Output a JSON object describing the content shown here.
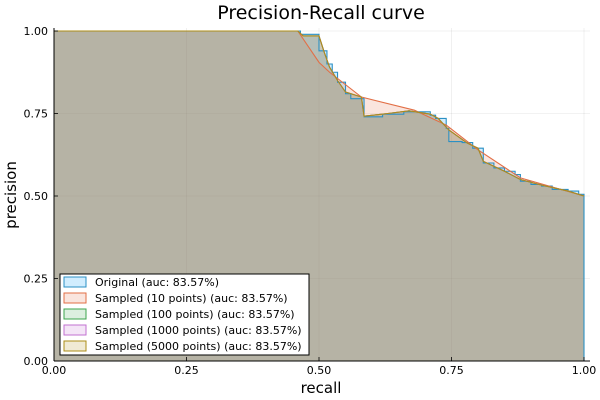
{
  "chart_data": {
    "type": "area",
    "title": "Precision-Recall curve",
    "xlabel": "recall",
    "ylabel": "precision",
    "xlim": [
      0,
      1
    ],
    "ylim": [
      0,
      1
    ],
    "grid": true,
    "legend_position": "bottom-left",
    "x_ticks": [
      {
        "value": 0,
        "label": "0.00"
      },
      {
        "value": 0.25,
        "label": "0.25"
      },
      {
        "value": 0.5,
        "label": "0.50"
      },
      {
        "value": 0.75,
        "label": "0.75"
      },
      {
        "value": 1,
        "label": "1.00"
      }
    ],
    "y_ticks": [
      {
        "value": 0,
        "label": "0.00"
      },
      {
        "value": 0.25,
        "label": "0.25"
      },
      {
        "value": 0.5,
        "label": "0.50"
      },
      {
        "value": 0.75,
        "label": "0.75"
      },
      {
        "value": 1,
        "label": "1.00"
      }
    ],
    "series": [
      {
        "name": "Original (auc: 83.57%)",
        "color": "#2b90c4",
        "fill": "#009af9",
        "step": true,
        "points": [
          [
            0,
            1.0
          ],
          [
            0.46,
            1.0
          ],
          [
            0.465,
            0.99
          ],
          [
            0.5,
            0.985
          ],
          [
            0.5,
            0.94
          ],
          [
            0.51,
            0.94
          ],
          [
            0.515,
            0.9
          ],
          [
            0.525,
            0.875
          ],
          [
            0.535,
            0.845
          ],
          [
            0.55,
            0.81
          ],
          [
            0.56,
            0.795
          ],
          [
            0.58,
            0.795
          ],
          [
            0.585,
            0.74
          ],
          [
            0.62,
            0.748
          ],
          [
            0.66,
            0.755
          ],
          [
            0.7,
            0.755
          ],
          [
            0.71,
            0.745
          ],
          [
            0.72,
            0.735
          ],
          [
            0.74,
            0.705
          ],
          [
            0.745,
            0.665
          ],
          [
            0.77,
            0.662
          ],
          [
            0.79,
            0.645
          ],
          [
            0.81,
            0.6
          ],
          [
            0.83,
            0.585
          ],
          [
            0.85,
            0.575
          ],
          [
            0.87,
            0.565
          ],
          [
            0.88,
            0.545
          ],
          [
            0.9,
            0.535
          ],
          [
            0.92,
            0.53
          ],
          [
            0.94,
            0.52
          ],
          [
            0.97,
            0.515
          ],
          [
            0.99,
            0.505
          ],
          [
            1.0,
            0.5
          ],
          [
            1.0,
            0.0
          ]
        ]
      },
      {
        "name": "Sampled (10 points) (auc: 83.57%)",
        "color": "#e26f46",
        "fill": "#e26f46",
        "step": false,
        "points": [
          [
            0,
            1.0
          ],
          [
            0.46,
            1.0
          ],
          [
            0.5,
            0.905
          ],
          [
            0.52,
            0.875
          ],
          [
            0.58,
            0.8
          ],
          [
            0.68,
            0.76
          ],
          [
            0.74,
            0.715
          ],
          [
            0.8,
            0.64
          ],
          [
            0.88,
            0.555
          ],
          [
            1.0,
            0.5
          ]
        ]
      },
      {
        "name": "Sampled (100 points) (auc: 83.57%)",
        "color": "#3da44d",
        "fill": "#3da44d",
        "step": false,
        "points": [
          [
            0,
            1.0
          ],
          [
            0.46,
            1.0
          ],
          [
            0.47,
            0.985
          ],
          [
            0.5,
            0.985
          ],
          [
            0.51,
            0.935
          ],
          [
            0.52,
            0.89
          ],
          [
            0.535,
            0.85
          ],
          [
            0.55,
            0.815
          ],
          [
            0.58,
            0.8
          ],
          [
            0.585,
            0.742
          ],
          [
            0.63,
            0.75
          ],
          [
            0.67,
            0.758
          ],
          [
            0.71,
            0.748
          ],
          [
            0.725,
            0.735
          ],
          [
            0.745,
            0.7
          ],
          [
            0.78,
            0.66
          ],
          [
            0.8,
            0.645
          ],
          [
            0.81,
            0.605
          ],
          [
            0.85,
            0.575
          ],
          [
            0.88,
            0.55
          ],
          [
            0.92,
            0.533
          ],
          [
            0.97,
            0.515
          ],
          [
            1.0,
            0.5
          ]
        ]
      },
      {
        "name": "Sampled (1000 points) (auc: 83.57%)",
        "color": "#c271d2",
        "fill": "#c271d2",
        "step": false,
        "points": [
          [
            0,
            1.0
          ],
          [
            0.46,
            1.0
          ],
          [
            0.47,
            0.985
          ],
          [
            0.5,
            0.985
          ],
          [
            0.51,
            0.935
          ],
          [
            0.52,
            0.89
          ],
          [
            0.535,
            0.85
          ],
          [
            0.55,
            0.815
          ],
          [
            0.58,
            0.8
          ],
          [
            0.585,
            0.742
          ],
          [
            0.63,
            0.75
          ],
          [
            0.67,
            0.758
          ],
          [
            0.71,
            0.748
          ],
          [
            0.725,
            0.735
          ],
          [
            0.745,
            0.7
          ],
          [
            0.78,
            0.66
          ],
          [
            0.8,
            0.645
          ],
          [
            0.81,
            0.605
          ],
          [
            0.85,
            0.575
          ],
          [
            0.88,
            0.55
          ],
          [
            0.92,
            0.533
          ],
          [
            0.97,
            0.515
          ],
          [
            1.0,
            0.5
          ]
        ]
      },
      {
        "name": "Sampled (5000 points) (auc: 83.57%)",
        "color": "#ac8d18",
        "fill": "#ac8d18",
        "step": false,
        "points": [
          [
            0,
            1.0
          ],
          [
            0.46,
            1.0
          ],
          [
            0.47,
            0.985
          ],
          [
            0.5,
            0.985
          ],
          [
            0.51,
            0.935
          ],
          [
            0.52,
            0.89
          ],
          [
            0.535,
            0.85
          ],
          [
            0.55,
            0.815
          ],
          [
            0.58,
            0.8
          ],
          [
            0.585,
            0.742
          ],
          [
            0.63,
            0.75
          ],
          [
            0.67,
            0.758
          ],
          [
            0.71,
            0.748
          ],
          [
            0.725,
            0.735
          ],
          [
            0.745,
            0.7
          ],
          [
            0.78,
            0.66
          ],
          [
            0.8,
            0.645
          ],
          [
            0.81,
            0.605
          ],
          [
            0.85,
            0.575
          ],
          [
            0.88,
            0.55
          ],
          [
            0.92,
            0.533
          ],
          [
            0.97,
            0.515
          ],
          [
            1.0,
            0.5
          ]
        ]
      }
    ]
  }
}
